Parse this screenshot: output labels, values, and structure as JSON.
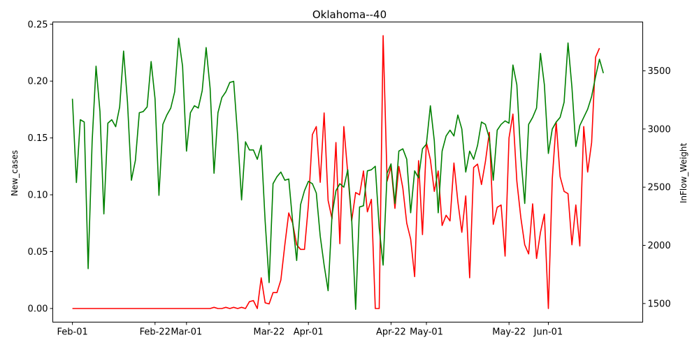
{
  "chart_data": {
    "type": "line",
    "title": "Oklahoma--40",
    "xlabel": "",
    "ylabel": "New_cases",
    "y2label": "InFlow_Weight",
    "grid": false,
    "legend": "none",
    "x_start": "2020-02-01",
    "x_end": "2020-06-20",
    "xlim": [
      "2020-01-27",
      "2020-06-25"
    ],
    "ylim": [
      -0.012,
      0.252
    ],
    "y2lim": [
      1340,
      3920
    ],
    "x_ticks": [
      {
        "date": "2020-02-01",
        "label": "Feb-01"
      },
      {
        "date": "2020-02-22",
        "label": "Feb-22"
      },
      {
        "date": "2020-03-01",
        "label": "Mar-01"
      },
      {
        "date": "2020-03-22",
        "label": "Mar-22"
      },
      {
        "date": "2020-04-01",
        "label": "Apr-01"
      },
      {
        "date": "2020-04-22",
        "label": "Apr-22"
      },
      {
        "date": "2020-05-01",
        "label": "May-01"
      },
      {
        "date": "2020-05-22",
        "label": "May-22"
      },
      {
        "date": "2020-06-01",
        "label": "Jun-01"
      }
    ],
    "y_ticks": [
      "0.00",
      "0.05",
      "0.10",
      "0.15",
      "0.20",
      "0.25"
    ],
    "y2_ticks": [
      "1500",
      "2000",
      "2500",
      "3000",
      "3500"
    ],
    "series": [
      {
        "axis": "left",
        "color": "#ff0000",
        "values": [
          0,
          0,
          0,
          0,
          0,
          0,
          0,
          0,
          0,
          0,
          0,
          0,
          0,
          0,
          0,
          0,
          0,
          0,
          0,
          0,
          0,
          0,
          0,
          0,
          0,
          0,
          0,
          0,
          0,
          0,
          0,
          0,
          0,
          0,
          0,
          0,
          0.001,
          0,
          0,
          0.001,
          0,
          0.001,
          0,
          0.001,
          0,
          0.006,
          0.007,
          0,
          0.027,
          0.005,
          0.004,
          0.014,
          0.014,
          0.025,
          0.056,
          0.084,
          0.075,
          0.056,
          0.052,
          0.052,
          0.091,
          0.153,
          0.16,
          0.111,
          0.172,
          0.095,
          0.079,
          0.146,
          0.057,
          0.16,
          0.119,
          0.077,
          0.102,
          0.1,
          0.121,
          0.085,
          0.096,
          0,
          0,
          0.24,
          0.112,
          0.125,
          0.088,
          0.125,
          0.106,
          0.075,
          0.061,
          0.028,
          0.13,
          0.065,
          0.146,
          0.131,
          0.103,
          0.121,
          0.073,
          0.082,
          0.077,
          0.128,
          0.094,
          0.067,
          0.099,
          0.027,
          0.124,
          0.127,
          0.109,
          0.129,
          0.155,
          0.074,
          0.089,
          0.091,
          0.046,
          0.15,
          0.171,
          0.112,
          0.08,
          0.056,
          0.048,
          0.092,
          0.044,
          0.067,
          0.083,
          0,
          0.114,
          0.164,
          0.116,
          0.103,
          0.101,
          0.056,
          0.091,
          0.055,
          0.16,
          0.12,
          0.146,
          0.221,
          0.229
        ]
      },
      {
        "axis": "right",
        "color": "#008000",
        "values": [
          3260,
          2540,
          3080,
          3060,
          1800,
          2890,
          3540,
          3150,
          2270,
          3050,
          3080,
          3020,
          3190,
          3670,
          3230,
          2560,
          2730,
          3140,
          3150,
          3190,
          3580,
          3260,
          2430,
          3040,
          3120,
          3180,
          3320,
          3780,
          3540,
          2810,
          3140,
          3200,
          3180,
          3330,
          3700,
          3350,
          2620,
          3140,
          3270,
          3320,
          3400,
          3410,
          2940,
          2390,
          2890,
          2820,
          2820,
          2740,
          2860,
          2210,
          1680,
          2530,
          2590,
          2630,
          2560,
          2570,
          2200,
          1870,
          2350,
          2470,
          2550,
          2530,
          2450,
          2080,
          1830,
          1610,
          2260,
          2470,
          2530,
          2500,
          2650,
          2230,
          1450,
          2330,
          2340,
          2640,
          2650,
          2680,
          2150,
          1830,
          2620,
          2700,
          2360,
          2810,
          2830,
          2740,
          2280,
          2640,
          2580,
          2830,
          2870,
          3200,
          2900,
          2280,
          2810,
          2940,
          2990,
          2940,
          3120,
          3000,
          2630,
          2810,
          2740,
          2860,
          3060,
          3040,
          2920,
          2560,
          2990,
          3040,
          3070,
          3050,
          3550,
          3380,
          2760,
          2360,
          3040,
          3100,
          3180,
          3650,
          3380,
          2790,
          3000,
          3060,
          3100,
          3230,
          3740,
          3360,
          2850,
          3030,
          3100,
          3170,
          3280,
          3450,
          3600,
          3480
        ]
      }
    ]
  }
}
